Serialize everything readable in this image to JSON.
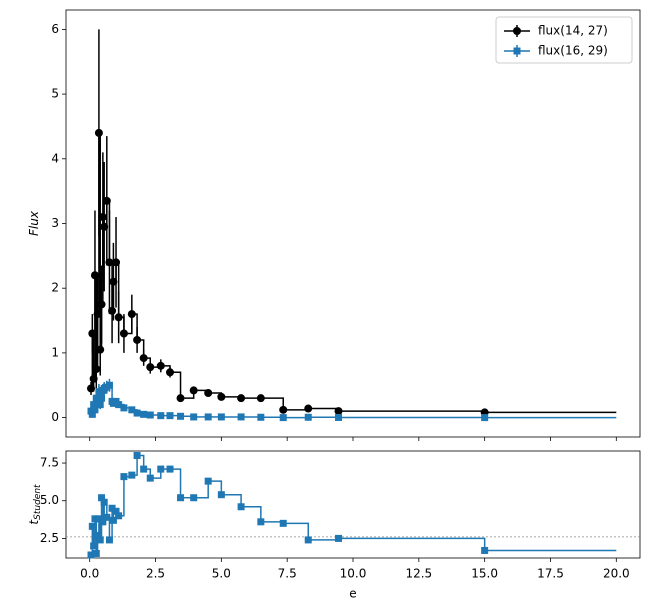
{
  "chart_data": [
    {
      "type": "errorbar",
      "ylabel": "Flux",
      "x": [
        0.05,
        0.1,
        0.15,
        0.2,
        0.25,
        0.3,
        0.35,
        0.4,
        0.45,
        0.5,
        0.55,
        0.65,
        0.75,
        0.85,
        0.9,
        1.0,
        1.1,
        1.3,
        1.6,
        1.8,
        2.05,
        2.3,
        2.7,
        3.05,
        3.45,
        3.95,
        4.5,
        5.0,
        5.75,
        6.5,
        7.35,
        8.3,
        9.45,
        15.0
      ],
      "step_end": 20,
      "series": [
        {
          "name": "flux(14, 27)",
          "color": "#000000",
          "marker": "circle",
          "values": [
            0.45,
            1.3,
            0.6,
            2.2,
            0.75,
            1.6,
            4.4,
            1.05,
            1.75,
            3.1,
            2.95,
            3.35,
            2.4,
            1.65,
            2.1,
            2.4,
            1.55,
            1.3,
            1.6,
            1.2,
            0.92,
            0.78,
            0.8,
            0.7,
            0.3,
            0.42,
            0.38,
            0.32,
            0.3,
            0.3,
            0.12,
            0.14,
            0.1,
            0.08
          ],
          "errors": [
            0.1,
            0.3,
            0.2,
            1.0,
            0.3,
            0.6,
            1.6,
            0.4,
            0.6,
            1.0,
            1.0,
            1.0,
            0.8,
            0.5,
            0.6,
            0.7,
            0.4,
            0.3,
            0.3,
            0.2,
            0.12,
            0.1,
            0.1,
            0.08,
            0.05,
            0.05,
            0.04,
            0.04,
            0.04,
            0.05,
            0.03,
            0.03,
            0.02,
            0.02
          ]
        },
        {
          "name": "flux(16, 29)",
          "color": "#1f77b4",
          "marker": "square",
          "values": [
            0.1,
            0.05,
            0.2,
            0.12,
            0.3,
            0.25,
            0.4,
            0.2,
            0.3,
            0.42,
            0.45,
            0.47,
            0.5,
            0.25,
            0.22,
            0.25,
            0.2,
            0.15,
            0.12,
            0.07,
            0.05,
            0.04,
            0.03,
            0.03,
            0.02,
            0.01,
            0.01,
            0.01,
            0.01,
            0.005,
            0.0,
            0.005,
            0.002,
            0.0
          ],
          "errors": [
            0.05,
            0.04,
            0.08,
            0.05,
            0.1,
            0.08,
            0.12,
            0.07,
            0.08,
            0.1,
            0.1,
            0.1,
            0.1,
            0.06,
            0.05,
            0.05,
            0.04,
            0.03,
            0.03,
            0.02,
            0.01,
            0.01,
            0.01,
            0.01,
            0.01,
            0.01,
            0.01,
            0.01,
            0.01,
            0.01,
            0.01,
            0.01,
            0.01,
            0.01
          ]
        }
      ],
      "xlim": [
        -0.9,
        20.9
      ],
      "ylim": [
        -0.3,
        6.3
      ],
      "xticks": [
        0,
        2.5,
        5,
        7.5,
        10,
        12.5,
        15,
        17.5,
        20
      ],
      "yticks": [
        0,
        1,
        2,
        3,
        4,
        5,
        6
      ],
      "legend": "upper right"
    },
    {
      "type": "step",
      "xlabel": "e",
      "ylabel": "t",
      "ylabel_sub": "Student",
      "x": [
        0.05,
        0.1,
        0.15,
        0.2,
        0.25,
        0.3,
        0.35,
        0.4,
        0.45,
        0.5,
        0.55,
        0.65,
        0.75,
        0.85,
        0.9,
        1.0,
        1.1,
        1.3,
        1.6,
        1.8,
        2.05,
        2.3,
        2.7,
        3.05,
        3.45,
        3.95,
        4.5,
        5.0,
        5.75,
        6.5,
        7.35,
        8.3,
        9.45,
        15.0
      ],
      "step_end": 20,
      "color": "#1f77b4",
      "values": [
        1.4,
        3.3,
        2.0,
        3.8,
        1.5,
        2.7,
        3.8,
        2.4,
        5.2,
        3.6,
        4.9,
        3.9,
        2.4,
        4.5,
        3.7,
        4.3,
        4.0,
        6.6,
        6.7,
        8.0,
        7.1,
        6.5,
        7.1,
        7.1,
        5.2,
        5.2,
        6.3,
        5.4,
        4.6,
        3.6,
        3.5,
        2.4,
        2.5,
        1.7
      ],
      "threshold": 2.6,
      "xlim": [
        -0.9,
        20.9
      ],
      "ylim": [
        1.2,
        8.3
      ],
      "xticks": [
        {
          "value": 0,
          "label": "0.0"
        },
        2.5,
        {
          "value": 5,
          "label": "5.0"
        },
        7.5,
        {
          "value": 10,
          "label": "10.0"
        },
        12.5,
        {
          "value": 15,
          "label": "15.0"
        },
        17.5,
        {
          "value": 20,
          "label": "20.0"
        }
      ],
      "yticks": [
        2.5,
        {
          "value": 5,
          "label": "5.0"
        },
        7.5
      ]
    }
  ]
}
